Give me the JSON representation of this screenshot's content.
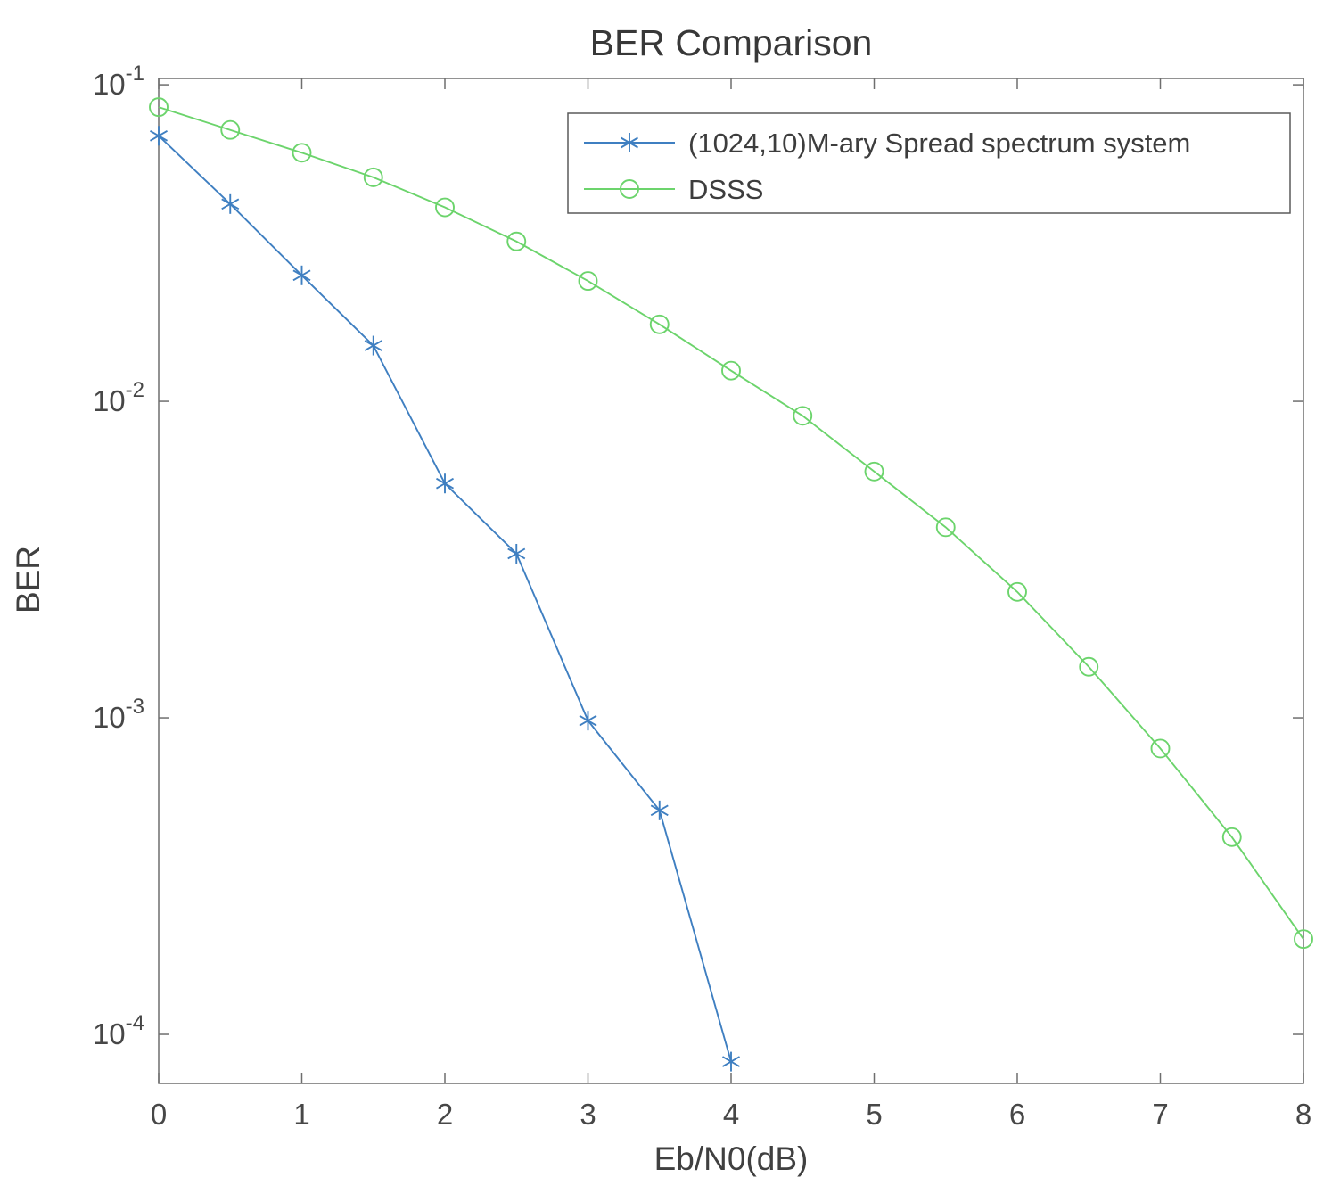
{
  "chart_data": {
    "type": "line",
    "title": "BER Comparison",
    "xlabel": "Eb/N0(dB)",
    "ylabel": "BER",
    "x_ticks": [
      0,
      1,
      2,
      3,
      4,
      5,
      6,
      7,
      8
    ],
    "xlim": [
      0,
      8
    ],
    "y_scale": "log",
    "grid": false,
    "y_ticks": [
      0.1,
      0.01,
      0.001,
      0.0001
    ],
    "y_tick_labels": [
      "10^{-1}",
      "10^{-2}",
      "10^{-3}",
      "10^{-4}"
    ],
    "ylim": [
      7e-05,
      0.1047
    ],
    "legend_position": "north-inside",
    "series": [
      {
        "name": "(1024,10)M-ary Spread spectrum system",
        "color": "#3f7fc1",
        "marker": "asterisk",
        "x": [
          0,
          0.5,
          1,
          1.5,
          2,
          2.5,
          3,
          3.5,
          4
        ],
        "y": [
          0.069,
          0.042,
          0.025,
          0.015,
          0.0055,
          0.0033,
          0.00098,
          0.00051,
          8.2e-05
        ]
      },
      {
        "name": "DSSS",
        "color": "#6cd46c",
        "marker": "circle",
        "x": [
          0,
          0.5,
          1,
          1.5,
          2,
          2.5,
          3,
          3.5,
          4,
          4.5,
          5,
          5.5,
          6,
          6.5,
          7,
          7.5,
          8
        ],
        "y": [
          0.085,
          0.072,
          0.061,
          0.051,
          0.041,
          0.032,
          0.024,
          0.0175,
          0.0125,
          0.009,
          0.006,
          0.004,
          0.0025,
          0.00145,
          0.0008,
          0.00042,
          0.0002
        ]
      }
    ]
  }
}
